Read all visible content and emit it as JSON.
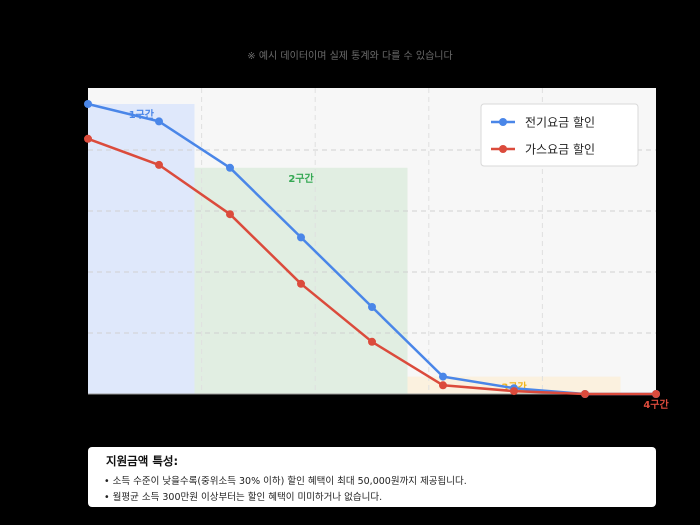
{
  "note": "※ 예시 데이터이며 실제 통계와 다를 수 있습니다",
  "chart_data": {
    "type": "line",
    "x": [
      0,
      1,
      2,
      3,
      4,
      5,
      6,
      7,
      8
    ],
    "series": [
      {
        "name": "전기요금 할인",
        "color": "#4a86e8",
        "values": [
          50000,
          47000,
          39000,
          27000,
          15000,
          3000,
          1000,
          0,
          0
        ]
      },
      {
        "name": "가스요금 할인",
        "color": "#db4b3c",
        "values": [
          44000,
          39500,
          31000,
          19000,
          9000,
          1500,
          500,
          0,
          0
        ]
      }
    ],
    "xlim": [
      0,
      8
    ],
    "ylim": [
      0,
      50000
    ],
    "grid": true,
    "legend_position": "top-right",
    "zones": [
      {
        "label": "1구간",
        "from": 0,
        "to": 1.5,
        "color": "#dfe8fb",
        "label_color": "#4a86e8"
      },
      {
        "label": "2구간",
        "from": 1.5,
        "to": 4.5,
        "color": "#e1eee2",
        "label_color": "#34a853"
      },
      {
        "label": "3구간",
        "from": 4.5,
        "to": 7.5,
        "color": "#fbf1df",
        "label_color": "#f0b41c"
      },
      {
        "label": "4구간",
        "from": 7.5,
        "to": 8.5,
        "color": "#fbe1e1",
        "label_color": "#db4b3c"
      }
    ]
  },
  "info": {
    "title": "지원금액 특성:",
    "lines": [
      "• 소득 수준이 낮을수록(중위소득 30% 이하) 할인 혜택이 최대 50,000원까지 제공됩니다.",
      "• 월평균 소득 300만원 이상부터는 할인 혜택이 미미하거나 없습니다."
    ]
  }
}
